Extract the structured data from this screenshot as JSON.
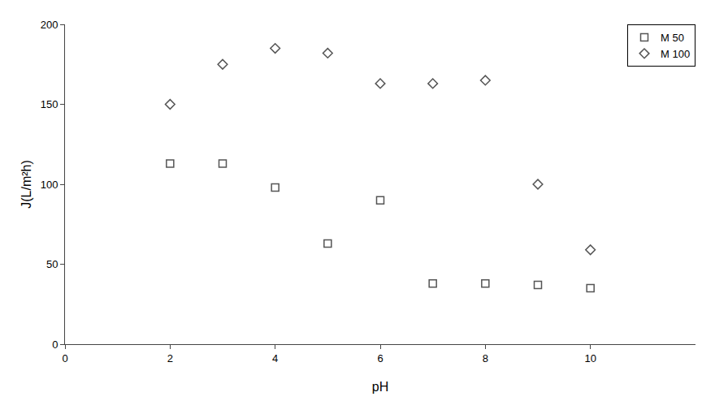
{
  "chart_data": {
    "type": "scatter",
    "xlabel": "pH",
    "ylabel": "J(L/m²h)",
    "x": [
      2,
      3,
      4,
      5,
      6,
      7,
      8,
      9,
      10
    ],
    "series": [
      {
        "name": "M 50",
        "color": "#555555",
        "marker": "square",
        "values": [
          113,
          113,
          98,
          63,
          90,
          38,
          38,
          37,
          35
        ]
      },
      {
        "name": "M 100",
        "color": "#555555",
        "marker": "diamond",
        "values": [
          150,
          175,
          185,
          182,
          163,
          163,
          165,
          100,
          59
        ]
      }
    ],
    "xlim": [
      0,
      12
    ],
    "ylim": [
      0,
      200
    ],
    "xticks": [
      0,
      2,
      4,
      6,
      8,
      10
    ],
    "yticks": [
      0,
      50,
      100,
      150,
      200
    ],
    "grid": false,
    "legend": "upper right"
  }
}
